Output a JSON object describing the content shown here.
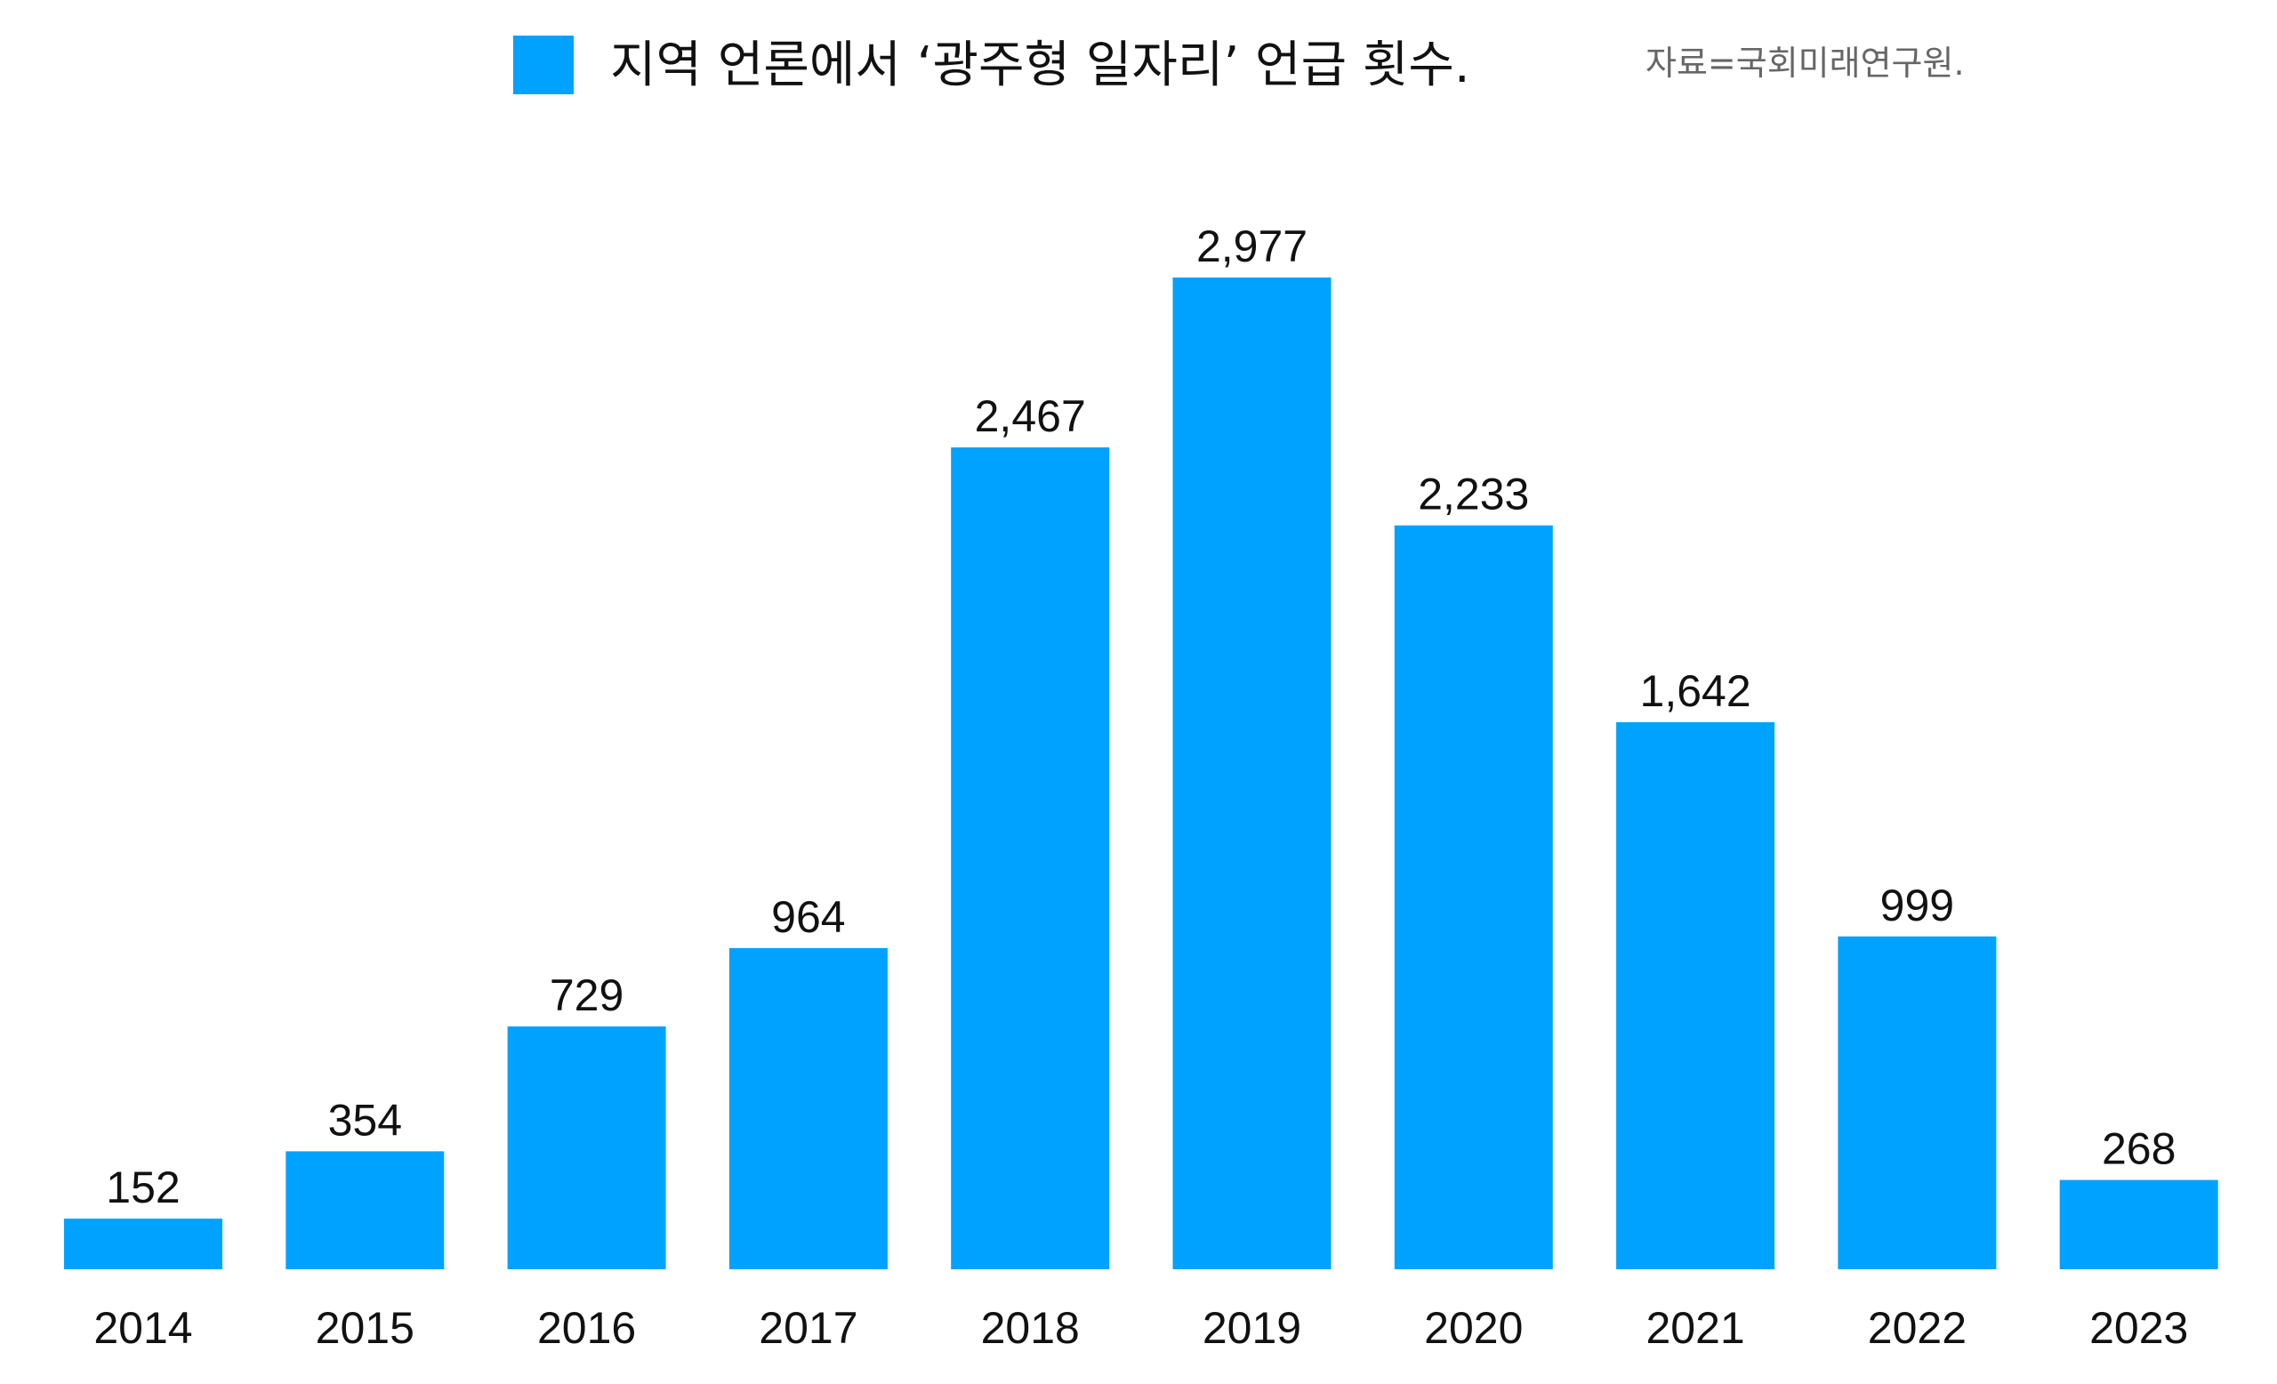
{
  "legend": {
    "label": "지역 언론에서 ‘광주형 일자리’ 언급 횟수.",
    "source": "자료=국회미래연구원.",
    "color": "#00A2FF"
  },
  "chart_data": {
    "type": "bar",
    "title": "",
    "xlabel": "",
    "ylabel": "",
    "categories": [
      "2014",
      "2015",
      "2016",
      "2017",
      "2018",
      "2019",
      "2020",
      "2021",
      "2022",
      "2023"
    ],
    "series": [
      {
        "name": "지역 언론에서 ‘광주형 일자리’ 언급 횟수.",
        "values": [
          152,
          354,
          729,
          964,
          2467,
          2977,
          2233,
          1642,
          999,
          268
        ]
      }
    ],
    "value_labels": [
      "152",
      "354",
      "729",
      "964",
      "2,467",
      "2,977",
      "2,233",
      "1,642",
      "999",
      "268"
    ],
    "ylim": [
      0,
      2977
    ],
    "grid": false,
    "legend_position": "top-center"
  }
}
